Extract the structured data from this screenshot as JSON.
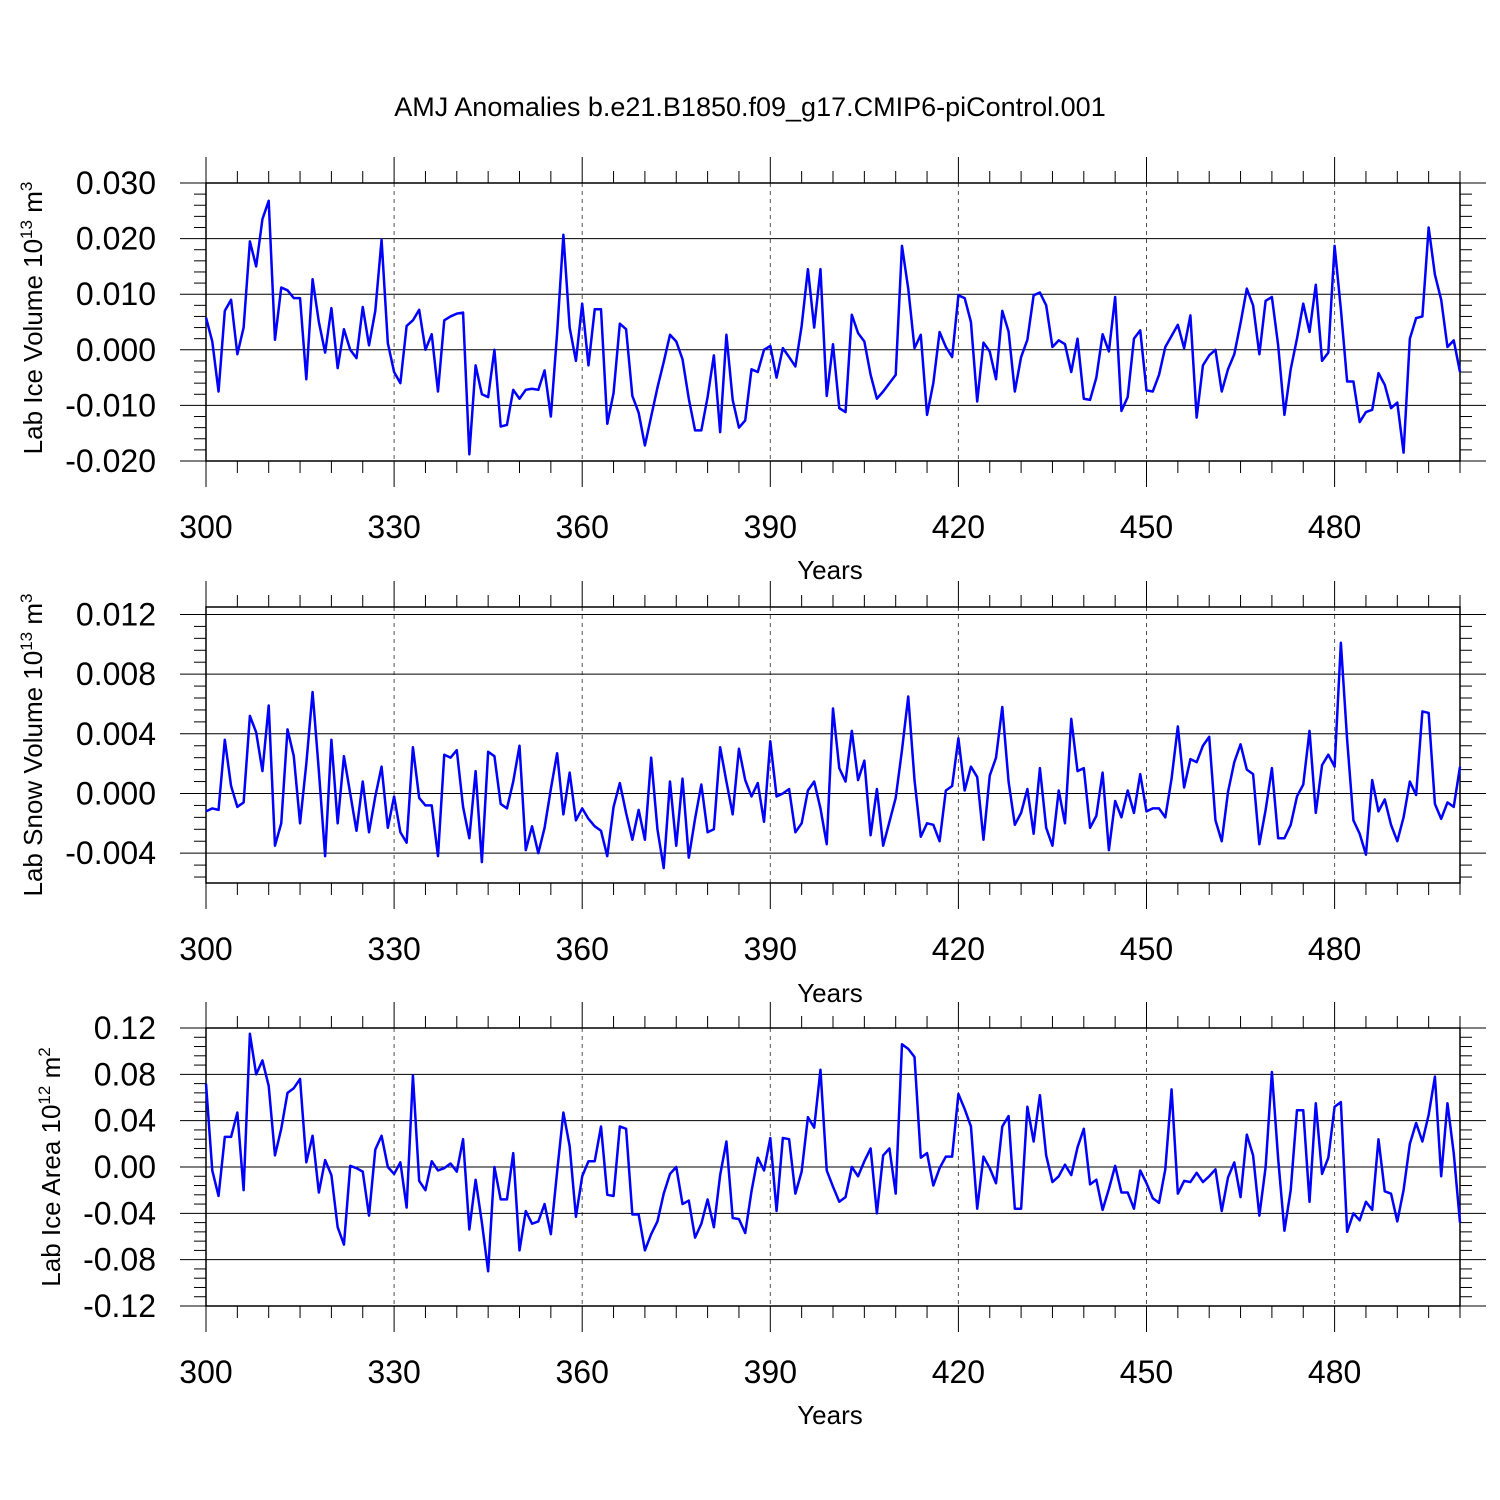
{
  "title": "AMJ Anomalies b.e21.B1850.f09_g17.CMIP6-piControl.001",
  "colors": {
    "series": "#0000ff",
    "axis": "#000000",
    "grid": "#555555"
  },
  "chart_data": [
    {
      "type": "line",
      "title": "AMJ Anomalies b.e21.B1850.f09_g17.CMIP6-piControl.001",
      "xlabel": "Years",
      "ylabel": "Lab Ice Volume 10",
      "ylabel_exp": "13",
      "ylabel_unit": " m",
      "ylabel_unit_exp": "3",
      "xlim": [
        300,
        500
      ],
      "ylim": [
        -0.02,
        0.03
      ],
      "xticks": [
        300,
        330,
        360,
        390,
        420,
        450,
        480
      ],
      "yticks": [
        -0.02,
        -0.01,
        0.0,
        0.01,
        0.02,
        0.03
      ],
      "ytick_labels": [
        "-0.020",
        "-0.010",
        "0.000",
        "0.010",
        "0.020",
        "0.030"
      ],
      "ytick_decimals": 3,
      "x_start": 300,
      "series": [
        {
          "name": "Lab Ice Volume",
          "values": [
            0.0058,
            0.0015,
            -0.0075,
            0.007,
            0.009,
            -0.0008,
            0.004,
            0.0195,
            0.015,
            0.0235,
            0.0268,
            0.0018,
            0.0112,
            0.0107,
            0.0093,
            0.0093,
            -0.0053,
            0.0127,
            0.005,
            -0.0005,
            0.0075,
            -0.0033,
            0.0037,
            0.0,
            -0.0015,
            0.0077,
            0.0008,
            0.007,
            0.0198,
            0.0012,
            -0.004,
            -0.006,
            0.0043,
            0.0053,
            0.0072,
            0.0,
            0.0028,
            -0.0075,
            0.0053,
            0.006,
            0.0065,
            0.0067,
            -0.0188,
            -0.0028,
            -0.008,
            -0.0085,
            0.0,
            -0.0138,
            -0.0135,
            -0.0072,
            -0.0088,
            -0.0072,
            -0.007,
            -0.0072,
            -0.0037,
            -0.012,
            0.003,
            0.0207,
            0.004,
            -0.002,
            0.0083,
            -0.0028,
            0.0073,
            0.0073,
            -0.0133,
            -0.0078,
            0.0047,
            0.0037,
            -0.0083,
            -0.0113,
            -0.0172,
            -0.012,
            -0.0068,
            -0.0022,
            0.0027,
            0.0015,
            -0.0017,
            -0.0088,
            -0.0145,
            -0.0145,
            -0.0085,
            -0.001,
            -0.0148,
            0.0027,
            -0.009,
            -0.014,
            -0.0127,
            -0.0035,
            -0.004,
            0.0,
            0.0007,
            -0.005,
            0.0003,
            -0.0013,
            -0.003,
            0.0043,
            0.0145,
            0.004,
            0.0145,
            -0.0083,
            0.001,
            -0.0105,
            -0.0112,
            0.0063,
            0.003,
            0.0015,
            -0.0045,
            -0.0088,
            -0.0075,
            -0.006,
            -0.0045,
            0.0187,
            0.011,
            0.0003,
            0.0027,
            -0.0117,
            -0.006,
            0.0032,
            0.0005,
            -0.0013,
            0.0098,
            0.0093,
            0.005,
            -0.0093,
            0.0013,
            -0.0003,
            -0.0053,
            0.007,
            0.0033,
            -0.0075,
            -0.0013,
            0.0018,
            0.0098,
            0.0103,
            0.008,
            0.0005,
            0.0017,
            0.001,
            -0.004,
            0.002,
            -0.0088,
            -0.009,
            -0.005,
            0.0028,
            -0.0003,
            0.0095,
            -0.011,
            -0.0085,
            0.002,
            0.0035,
            -0.0073,
            -0.0075,
            -0.0045,
            0.0005,
            0.0025,
            0.0045,
            0.0003,
            0.0062,
            -0.0122,
            -0.0028,
            -0.001,
            0.0,
            -0.0075,
            -0.0035,
            -0.0008,
            0.0048,
            0.011,
            0.008,
            -0.0008,
            0.0088,
            0.0095,
            0.0008,
            -0.0117,
            -0.0035,
            0.002,
            0.0083,
            0.0032,
            0.0117,
            -0.002,
            -0.0005,
            0.0187,
            0.0073,
            -0.0057,
            -0.0057,
            -0.013,
            -0.0112,
            -0.0108,
            -0.0042,
            -0.0063,
            -0.0105,
            -0.0095,
            -0.0185,
            0.002,
            0.0057,
            0.006,
            0.022,
            0.0135,
            0.009,
            0.0005,
            0.0017,
            -0.004
          ]
        }
      ]
    },
    {
      "type": "line",
      "xlabel": "Years",
      "ylabel": "Lab Snow Volume 10",
      "ylabel_exp": "13",
      "ylabel_unit": " m",
      "ylabel_unit_exp": "3",
      "xlim": [
        300,
        500
      ],
      "ylim": [
        -0.006,
        0.0125
      ],
      "xticks": [
        300,
        330,
        360,
        390,
        420,
        450,
        480
      ],
      "yticks": [
        -0.004,
        0.0,
        0.004,
        0.008,
        0.012
      ],
      "ytick_labels": [
        "-0.004",
        "0.000",
        "0.004",
        "0.008",
        "0.012"
      ],
      "ytick_decimals": 3,
      "x_start": 300,
      "series": [
        {
          "name": "Lab Snow Volume",
          "values": [
            -0.0012,
            -0.001,
            -0.0011,
            0.0036,
            0.0005,
            -0.0009,
            -0.0006,
            0.0052,
            0.0041,
            0.0015,
            0.0059,
            -0.0035,
            -0.002,
            0.0043,
            0.0025,
            -0.002,
            0.002,
            0.0068,
            0.0015,
            -0.0042,
            0.0036,
            -0.002,
            0.0025,
            0.0,
            -0.0025,
            0.0008,
            -0.0026,
            -0.0002,
            0.0018,
            -0.0023,
            -0.0002,
            -0.0026,
            -0.0033,
            0.0031,
            -0.0003,
            -0.0008,
            -0.0008,
            -0.0042,
            0.0026,
            0.0024,
            0.0029,
            -0.0009,
            -0.003,
            0.0015,
            -0.0046,
            0.0028,
            0.0025,
            -0.0007,
            -0.001,
            0.0008,
            0.0032,
            -0.0038,
            -0.0022,
            -0.004,
            -0.0023,
            0.0003,
            0.0027,
            -0.0014,
            0.0014,
            -0.0018,
            -0.001,
            -0.0017,
            -0.0022,
            -0.0025,
            -0.0042,
            -0.0009,
            0.0007,
            -0.0013,
            -0.0031,
            -0.0011,
            -0.0031,
            0.0024,
            -0.0024,
            -0.005,
            0.0008,
            -0.0035,
            0.001,
            -0.0043,
            -0.0017,
            0.0006,
            -0.0026,
            -0.0024,
            0.0031,
            0.0008,
            -0.0014,
            0.003,
            0.0009,
            -0.0002,
            0.0007,
            -0.0019,
            0.0035,
            -0.0002,
            0.0,
            0.0003,
            -0.0026,
            -0.002,
            0.0002,
            0.0008,
            -0.001,
            -0.0034,
            0.0057,
            0.0017,
            0.0008,
            0.0042,
            0.0009,
            0.0022,
            -0.0028,
            0.0003,
            -0.0035,
            -0.0019,
            -0.0003,
            0.0029,
            0.0065,
            0.0009,
            -0.0029,
            -0.002,
            -0.0021,
            -0.0032,
            0.0002,
            0.0005,
            0.0037,
            0.0002,
            0.0018,
            0.0011,
            -0.0031,
            0.0012,
            0.0024,
            0.0058,
            0.0008,
            -0.0021,
            -0.0013,
            0.0003,
            -0.0027,
            0.0017,
            -0.0023,
            -0.0035,
            0.0002,
            -0.002,
            0.005,
            0.0015,
            0.0017,
            -0.0023,
            -0.0015,
            0.0014,
            -0.0038,
            -0.0005,
            -0.0016,
            0.0002,
            -0.0013,
            0.0013,
            -0.0012,
            -0.001,
            -0.001,
            -0.0016,
            0.001,
            0.0045,
            0.0004,
            0.0023,
            0.0021,
            0.0032,
            0.0038,
            -0.0018,
            -0.0032,
            0.0001,
            0.0021,
            0.0033,
            0.0016,
            0.0013,
            -0.0034,
            -0.0011,
            0.0017,
            -0.003,
            -0.003,
            -0.0021,
            -0.0002,
            0.0006,
            0.0042,
            -0.0013,
            0.0019,
            0.0026,
            0.0018,
            0.0101,
            0.0036,
            -0.0018,
            -0.0027,
            -0.0041,
            0.0009,
            -0.0012,
            -0.0004,
            -0.0021,
            -0.0032,
            -0.0016,
            0.0008,
            -0.0001,
            0.0055,
            0.0054,
            -0.0007,
            -0.0017,
            -0.0006,
            -0.0009,
            0.0018
          ]
        }
      ]
    },
    {
      "type": "line",
      "xlabel": "Years",
      "ylabel": "Lab Ice Area 10",
      "ylabel_exp": "12",
      "ylabel_unit": " m",
      "ylabel_unit_exp": "2",
      "xlim": [
        300,
        500
      ],
      "ylim": [
        -0.12,
        0.12
      ],
      "xticks": [
        300,
        330,
        360,
        390,
        420,
        450,
        480
      ],
      "yticks": [
        -0.12,
        -0.08,
        -0.04,
        0.0,
        0.04,
        0.08,
        0.12
      ],
      "ytick_labels": [
        "-0.12",
        "-0.08",
        "-0.04",
        "0.00",
        "0.04",
        "0.08",
        "0.12"
      ],
      "ytick_decimals": 2,
      "x_start": 300,
      "series": [
        {
          "name": "Lab Ice Area",
          "values": [
            0.072,
            -0.003,
            -0.025,
            0.026,
            0.026,
            0.047,
            -0.02,
            0.115,
            0.08,
            0.092,
            0.07,
            0.01,
            0.033,
            0.064,
            0.068,
            0.076,
            0.004,
            0.027,
            -0.022,
            0.006,
            -0.007,
            -0.052,
            -0.067,
            0.001,
            -0.001,
            -0.004,
            -0.042,
            0.015,
            0.027,
            0.0,
            -0.006,
            0.004,
            -0.035,
            0.079,
            -0.012,
            -0.02,
            0.005,
            -0.003,
            -0.001,
            0.003,
            -0.004,
            0.024,
            -0.054,
            -0.011,
            -0.048,
            -0.09,
            0.0,
            -0.028,
            -0.028,
            0.012,
            -0.072,
            -0.038,
            -0.049,
            -0.047,
            -0.032,
            -0.058,
            -0.004,
            0.047,
            0.018,
            -0.043,
            -0.008,
            0.005,
            0.005,
            0.035,
            -0.024,
            -0.025,
            0.035,
            0.033,
            -0.041,
            -0.041,
            -0.072,
            -0.058,
            -0.047,
            -0.023,
            -0.006,
            0.0,
            -0.032,
            -0.029,
            -0.061,
            -0.049,
            -0.028,
            -0.052,
            -0.007,
            0.022,
            -0.044,
            -0.045,
            -0.057,
            -0.021,
            0.008,
            -0.003,
            0.025,
            -0.038,
            0.025,
            0.024,
            -0.023,
            -0.004,
            0.043,
            0.034,
            0.084,
            -0.003,
            -0.017,
            -0.03,
            -0.026,
            0.0,
            -0.008,
            0.005,
            0.016,
            -0.04,
            0.01,
            0.016,
            -0.023,
            0.106,
            0.102,
            0.095,
            0.008,
            0.012,
            -0.016,
            -0.001,
            0.009,
            0.009,
            0.063,
            0.05,
            0.035,
            -0.036,
            0.009,
            -0.001,
            -0.014,
            0.035,
            0.044,
            -0.036,
            -0.036,
            0.052,
            0.022,
            0.062,
            0.01,
            -0.013,
            -0.008,
            0.002,
            -0.007,
            0.017,
            0.033,
            -0.015,
            -0.011,
            -0.037,
            -0.019,
            0.001,
            -0.022,
            -0.022,
            -0.036,
            -0.003,
            -0.014,
            -0.027,
            -0.031,
            -0.002,
            0.067,
            -0.023,
            -0.012,
            -0.013,
            -0.005,
            -0.013,
            -0.008,
            -0.002,
            -0.038,
            -0.009,
            0.004,
            -0.026,
            0.028,
            0.01,
            -0.042,
            0.0,
            0.082,
            0.007,
            -0.055,
            -0.02,
            0.049,
            0.049,
            -0.03,
            0.055,
            -0.006,
            0.008,
            0.052,
            0.056,
            -0.056,
            -0.04,
            -0.046,
            -0.03,
            -0.037,
            0.024,
            -0.021,
            -0.023,
            -0.047,
            -0.02,
            0.02,
            0.038,
            0.022,
            0.045,
            0.078,
            -0.008,
            0.055,
            0.012,
            -0.048
          ]
        }
      ]
    }
  ]
}
